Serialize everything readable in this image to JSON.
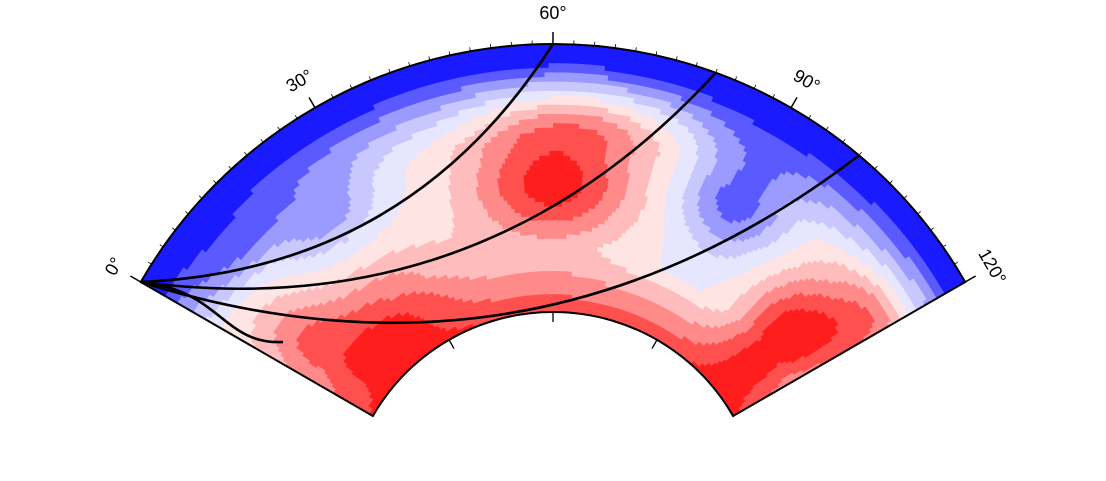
{
  "figure": {
    "type": "polar-cross-section",
    "colormap": [
      "#1a1aff",
      "#5a5aff",
      "#9a9aff",
      "#c8c8ff",
      "#e6e6ff",
      "#ffe4e4",
      "#ffbcbc",
      "#ff8a8a",
      "#ff5050",
      "#ff1e1e"
    ],
    "angle_labels": [
      {
        "value": "0°",
        "deg": 0
      },
      {
        "value": "30°",
        "deg": 30
      },
      {
        "value": "60°",
        "deg": 60
      },
      {
        "value": "90°",
        "deg": 90
      },
      {
        "value": "120°",
        "deg": 120
      }
    ],
    "minor_ticks_deg": [
      0,
      30,
      60,
      90,
      120
    ],
    "ray_paths_end_deg": [
      60,
      80,
      100
    ],
    "anomalies": [
      {
        "kind": "slow",
        "center_deg": 60,
        "center_r": 0.48,
        "spread_deg": 14,
        "spread_r": 0.22,
        "amp": 0.95
      },
      {
        "kind": "slow",
        "center_deg": 64,
        "center_r": 0.74,
        "spread_deg": 15,
        "spread_r": 0.13,
        "amp": 0.45
      },
      {
        "kind": "slow",
        "center_deg": 112,
        "center_r": 0.33,
        "spread_deg": 10,
        "spread_r": 0.26,
        "amp": 1.0
      },
      {
        "kind": "slow",
        "center_deg": 118,
        "center_r": 0.62,
        "spread_deg": 7,
        "spread_r": 0.2,
        "amp": 0.45
      },
      {
        "kind": "slow",
        "center_deg": 18,
        "center_r": 0.22,
        "spread_deg": 20,
        "spread_r": 0.18,
        "amp": 0.7
      },
      {
        "kind": "slow",
        "center_deg": 6,
        "center_r": 0.4,
        "spread_deg": 8,
        "spread_r": 0.2,
        "amp": 0.45
      },
      {
        "kind": "fast",
        "center_deg": 90,
        "center_r": 0.6,
        "spread_deg": 9,
        "spread_r": 0.2,
        "amp": 0.75
      },
      {
        "kind": "fast",
        "center_deg": 23,
        "center_r": 0.65,
        "spread_deg": 9,
        "spread_r": 0.14,
        "amp": 0.55
      },
      {
        "kind": "fast",
        "center_deg": 10,
        "center_r": 0.76,
        "spread_deg": 8,
        "spread_r": 0.12,
        "amp": 0.35
      }
    ],
    "outer_fast_gradient": {
      "start_r": 0.65,
      "strength": 1.25
    },
    "inner_slow_gradient": {
      "end_r": 0.25,
      "strength": 0.8
    }
  }
}
